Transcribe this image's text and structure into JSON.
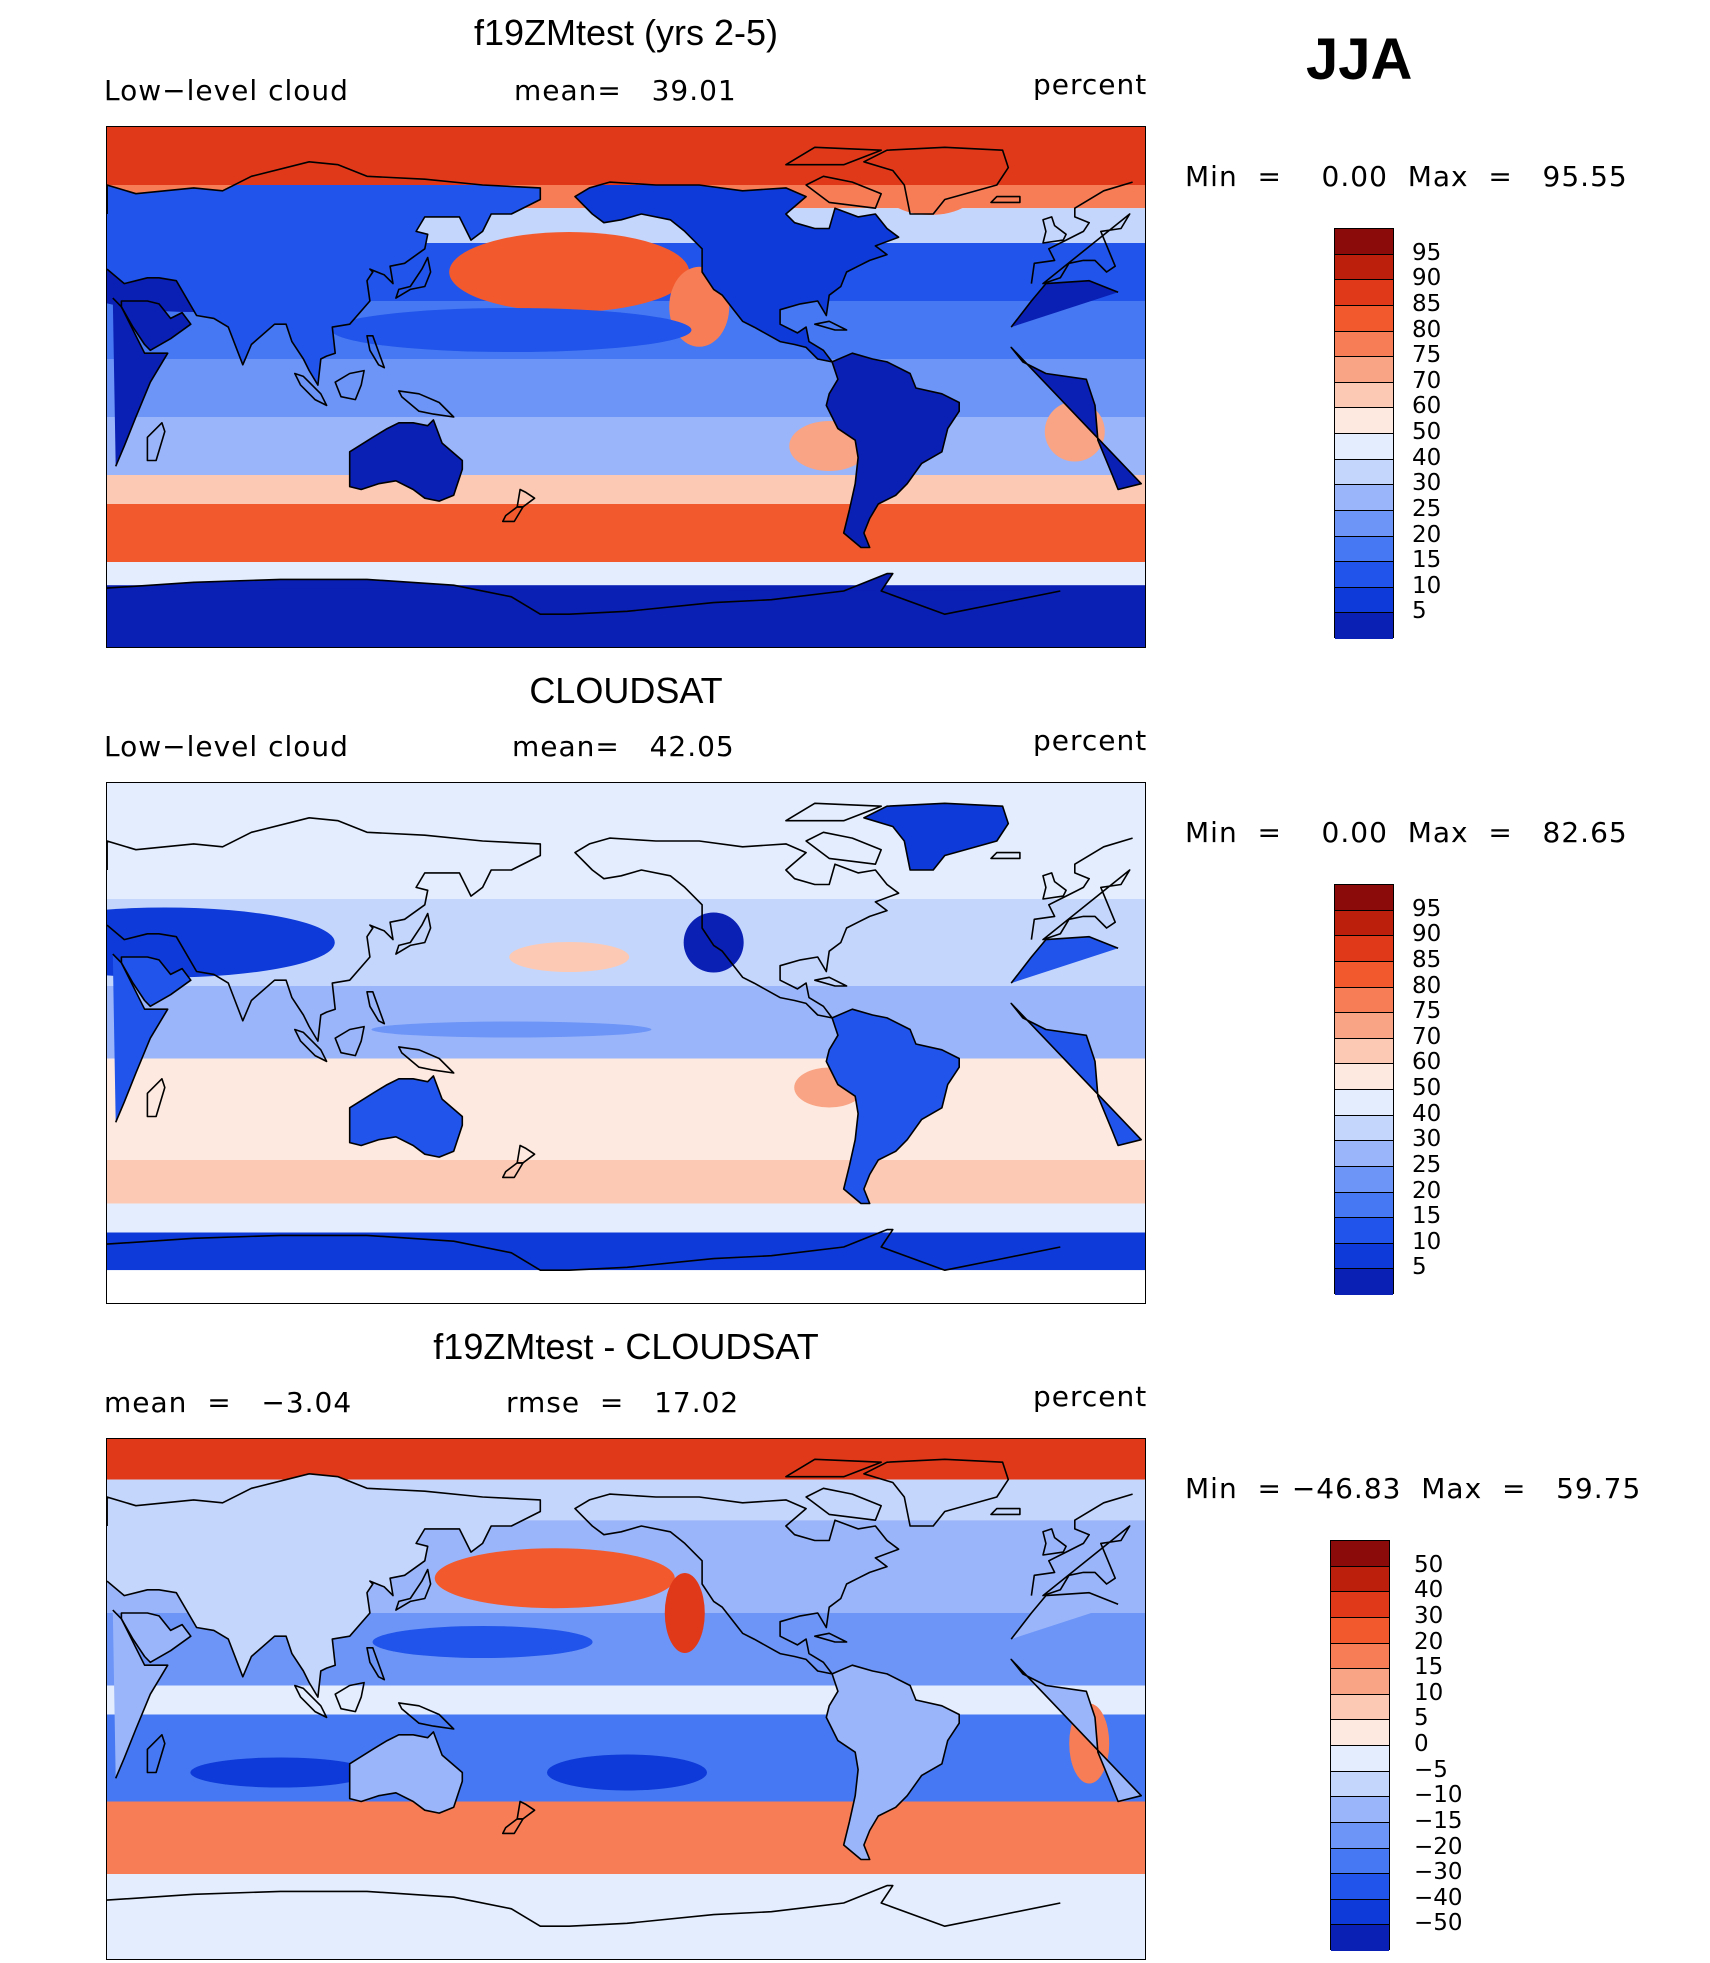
{
  "season": "JJA",
  "colors": {
    "abs_scale": [
      "#0a0f8c",
      "#0a1fb4",
      "#0d3ad8",
      "#2054ea",
      "#4578f2",
      "#6d95f7",
      "#9ab5fa",
      "#c4d6fc",
      "#e3edfd",
      "#fde9df",
      "#fccab4",
      "#f9a484",
      "#f77d56",
      "#f25a2e",
      "#e0391a",
      "#bd1f0d",
      "#8b0a0a"
    ],
    "diff_scale": [
      "#0a0f8c",
      "#0a1fb4",
      "#0d3ad8",
      "#2054ea",
      "#4578f2",
      "#6d95f7",
      "#9ab5fa",
      "#c4d6fc",
      "#e3edfd",
      "#fde9df",
      "#fccab4",
      "#f9a484",
      "#f77d56",
      "#f25a2e",
      "#e0391a",
      "#bd1f0d",
      "#8b0a0a"
    ]
  },
  "panels": [
    {
      "title": "f19ZMtest (yrs 2-5)",
      "left_label": "Low−level cloud",
      "middle_label": "mean=   39.01",
      "right_label": "percent",
      "minmax": "Min  =    0.00  Max  =   95.55",
      "colorbar_labels": [
        "95",
        "90",
        "85",
        "80",
        "75",
        "70",
        "60",
        "50",
        "40",
        "30",
        "25",
        "20",
        "15",
        "10",
        "5"
      ],
      "map_type": "model"
    },
    {
      "title": "CLOUDSAT",
      "left_label": "Low−level cloud",
      "middle_label": "mean=   42.05",
      "right_label": "percent",
      "minmax": "Min  =    0.00  Max  =   82.65",
      "colorbar_labels": [
        "95",
        "90",
        "85",
        "80",
        "75",
        "70",
        "60",
        "50",
        "40",
        "30",
        "25",
        "20",
        "15",
        "10",
        "5"
      ],
      "map_type": "obs"
    },
    {
      "title": "f19ZMtest - CLOUDSAT",
      "left_label": "mean  =   −3.04",
      "middle_label": "rmse  =   17.02",
      "right_label": "percent",
      "minmax": "Min  = −46.83  Max  =   59.75",
      "colorbar_labels": [
        "50",
        "40",
        "30",
        "20",
        "15",
        "10",
        "5",
        "0",
        "−5",
        "−10",
        "−15",
        "−20",
        "−30",
        "−40",
        "−50"
      ],
      "map_type": "diff"
    }
  ]
}
